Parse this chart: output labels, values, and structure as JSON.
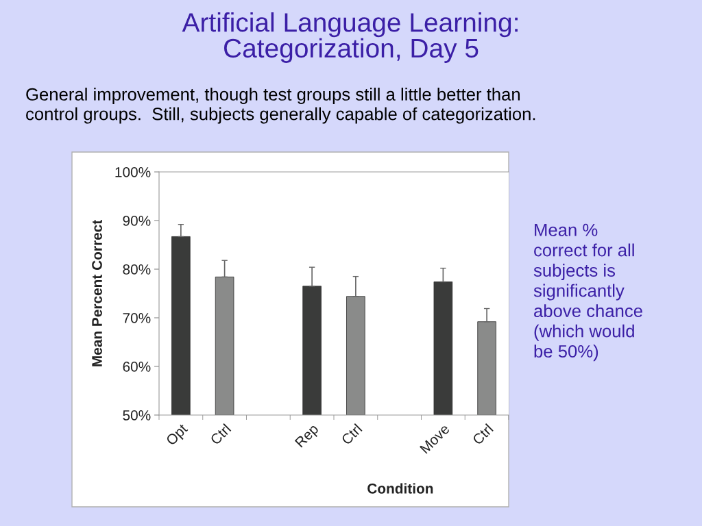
{
  "chart_data": {
    "type": "bar",
    "title": "Artificial Language Learning:\nCategorization, Day 5",
    "subtitle": "General improvement, though test groups still a little better than\ncontrol groups.  Still, subjects generally capable of categorization.",
    "annotations": [
      "Mean %\ncorrect for all\nsubjects is\nsignificantly\nabove chance\n(which would\nbe 50%)"
    ],
    "xlabel": "Condition",
    "ylabel": "Mean Percent Correct",
    "categories": [
      "Opt",
      "Ctrl",
      null,
      "Rep",
      "Ctrl",
      null,
      "Move",
      "Ctrl"
    ],
    "values": [
      86.7,
      78.4,
      null,
      76.5,
      74.4,
      null,
      77.4,
      69.2
    ],
    "colors": [
      "#3a3b3a",
      "#8a8b8a",
      null,
      "#3a3b3a",
      "#8a8b8a",
      null,
      "#3a3b3a",
      "#8a8b8a"
    ],
    "errors": [
      [
        86.7,
        89.2
      ],
      [
        78.4,
        81.8
      ],
      null,
      [
        76.5,
        80.4
      ],
      [
        74.4,
        78.5
      ],
      null,
      [
        77.4,
        80.2
      ],
      [
        69.2,
        71.9
      ]
    ],
    "ylim": [
      50,
      100
    ],
    "yticks": [
      {
        "value": 50,
        "label": "50%"
      },
      {
        "value": 60,
        "label": "60%"
      },
      {
        "value": 70,
        "label": "70%"
      },
      {
        "value": 80,
        "label": "80%"
      },
      {
        "value": 90,
        "label": "90%"
      },
      {
        "value": 100,
        "label": "100%"
      }
    ],
    "grid": false,
    "legend": false
  }
}
